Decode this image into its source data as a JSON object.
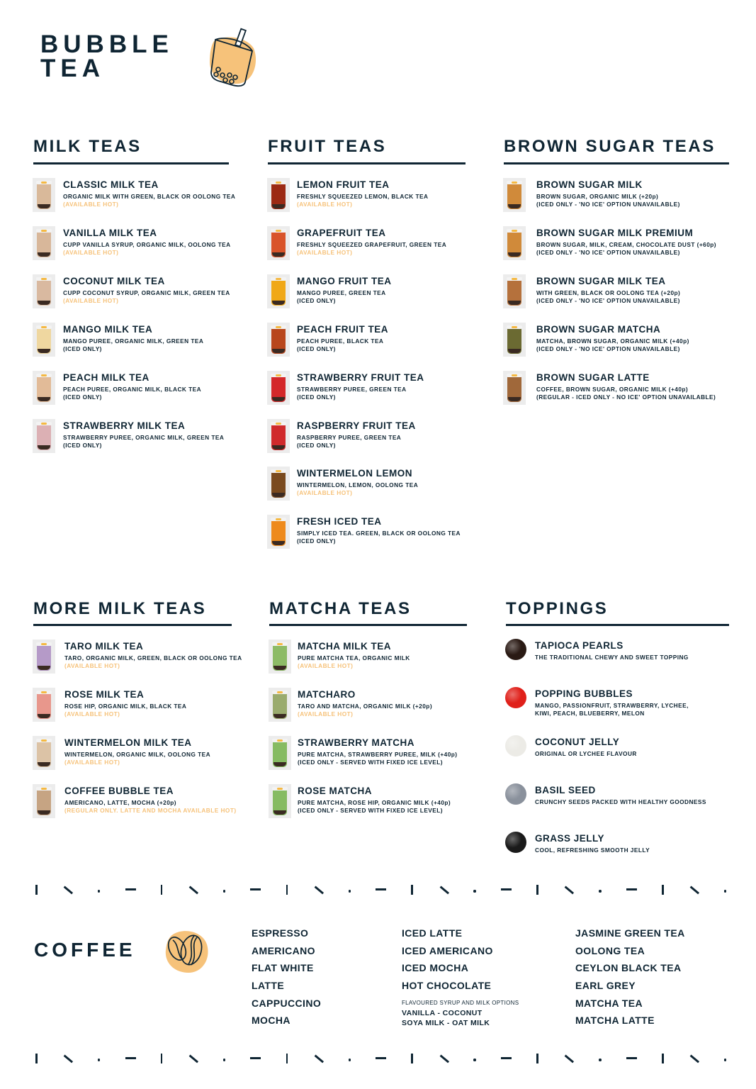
{
  "brand": {
    "line1": "BUBBLE",
    "line2": "TEA",
    "icon": "bubble-tea-cup-icon",
    "accent": "#f6c27a"
  },
  "colors": {
    "text": "#0f2533",
    "note": "#f6c27a"
  },
  "sections": [
    {
      "title": "MILK TEAS",
      "kind": "cup",
      "items": [
        {
          "name": "CLASSIC MILK TEA",
          "lines": [
            "ORGANIC MILK WITH GREEN, BLACK OR OOLONG TEA"
          ],
          "note": "(AVAILABLE HOT)",
          "color": "#d9b99a"
        },
        {
          "name": "VANILLA MILK TEA",
          "lines": [
            "CUPP VANILLA SYRUP, ORGANIC MILK, OOLONG TEA"
          ],
          "note": "(AVAILABLE HOT)",
          "color": "#d8b79a"
        },
        {
          "name": "COCONUT MILK TEA",
          "lines": [
            "CUPP COCONUT SYRUP, ORGANIC MILK, GREEN TEA"
          ],
          "note": "(AVAILABLE HOT)",
          "color": "#d9b9a0"
        },
        {
          "name": "MANGO MILK TEA",
          "lines": [
            "MANGO PUREE, ORGANIC MILK, GREEN TEA",
            "(ICED ONLY)"
          ],
          "color": "#efd7a0"
        },
        {
          "name": "PEACH MILK TEA",
          "lines": [
            "PEACH PUREE, ORGANIC MILK, BLACK TEA",
            "(ICED ONLY)"
          ],
          "color": "#e2bb98"
        },
        {
          "name": "STRAWBERRY MILK TEA",
          "lines": [
            "STRAWBERRY PUREE, ORGANIC MILK, GREEN TEA",
            "(ICED ONLY)"
          ],
          "color": "#dcb0b4"
        }
      ]
    },
    {
      "title": "FRUIT TEAS",
      "kind": "cup",
      "items": [
        {
          "name": "LEMON FRUIT TEA",
          "lines": [
            "FRESHLY SQUEEZED LEMON, BLACK TEA"
          ],
          "note": "(AVAILABLE HOT)",
          "color": "#9c2a14"
        },
        {
          "name": "GRAPEFRUIT TEA",
          "lines": [
            "FRESHLY SQUEEZED GRAPEFRUIT, GREEN TEA"
          ],
          "note": "(AVAILABLE HOT)",
          "color": "#d9542a"
        },
        {
          "name": "MANGO FRUIT TEA",
          "lines": [
            "MANGO PUREE, GREEN TEA",
            "(ICED ONLY)"
          ],
          "color": "#f0a818"
        },
        {
          "name": "PEACH FRUIT TEA",
          "lines": [
            "PEACH PUREE, BLACK TEA",
            "(ICED ONLY)"
          ],
          "color": "#b8461c"
        },
        {
          "name": "STRAWBERRY FRUIT TEA",
          "lines": [
            "STRAWBERRY PUREE, GREEN TEA",
            "(ICED ONLY)"
          ],
          "color": "#d4282a"
        },
        {
          "name": "RASPBERRY FRUIT TEA",
          "lines": [
            "RASPBERRY PUREE, GREEN TEA",
            "(ICED ONLY)"
          ],
          "color": "#d02a2c"
        },
        {
          "name": "WINTERMELON LEMON",
          "lines": [
            "WINTERMELON, LEMON, OOLONG TEA"
          ],
          "note": "(AVAILABLE HOT)",
          "color": "#7a4a1e"
        },
        {
          "name": "FRESH ICED TEA",
          "lines": [
            "SIMPLY ICED TEA. GREEN, BLACK OR OOLONG TEA",
            "(ICED ONLY)"
          ],
          "color": "#ee8a1c"
        }
      ]
    },
    {
      "title": "BROWN SUGAR TEAS",
      "kind": "cup",
      "items": [
        {
          "name": "BROWN SUGAR MILK",
          "lines": [
            "BROWN SUGAR, ORGANIC MILK (+20p)",
            "(ICED ONLY - 'NO ICE' OPTION UNAVAILABLE)"
          ],
          "color": "#d08a3a"
        },
        {
          "name": "BROWN SUGAR MILK PREMIUM",
          "lines": [
            "BROWN SUGAR, MILK, CREAM, CHOCOLATE DUST (+60p)",
            "(ICED ONLY - 'NO ICE' OPTION UNAVAILABLE)"
          ],
          "color": "#d08a3a"
        },
        {
          "name": "BROWN SUGAR MILK TEA",
          "lines": [
            "WITH GREEN, BLACK OR OOLONG TEA (+20p)",
            "(ICED ONLY - 'NO ICE' OPTION UNAVAILABLE)"
          ],
          "color": "#b5713c"
        },
        {
          "name": "BROWN SUGAR MATCHA",
          "lines": [
            "MATCHA, BROWN SUGAR, ORGANIC MILK (+40p)",
            "(ICED ONLY - 'NO ICE' OPTION UNAVAILABLE)"
          ],
          "color": "#6b6a32"
        },
        {
          "name": "BROWN SUGAR LATTE",
          "lines": [
            "COFFEE, BROWN SUGAR, ORGANIC MILK (+40p)",
            "(REGULAR - ICED ONLY - NO ICE' OPTION UNAVAILABLE)"
          ],
          "color": "#a0683a"
        }
      ]
    },
    {
      "title": "MORE MILK TEAS",
      "kind": "cup",
      "items": [
        {
          "name": "TARO MILK TEA",
          "lines": [
            "TARO, ORGANIC MILK, GREEN, BLACK OR OOLONG TEA"
          ],
          "note": "(AVAILABLE HOT)",
          "color": "#b59ac8"
        },
        {
          "name": "ROSE MILK TEA",
          "lines": [
            "ROSE HIP, ORGANIC MILK, BLACK TEA"
          ],
          "note": "(AVAILABLE HOT)",
          "color": "#e8978c"
        },
        {
          "name": "WINTERMELON MILK TEA",
          "lines": [
            "WINTERMELON, ORGANIC MILK, OOLONG TEA"
          ],
          "note": "(AVAILABLE HOT)",
          "color": "#dcc3a6"
        },
        {
          "name": "COFFEE BUBBLE TEA",
          "lines": [
            "AMERICANO, LATTE, MOCHA (+20p)"
          ],
          "note": "(REGULAR ONLY. LATTE AND MOCHA AVAILABLE HOT)",
          "color": "#c6a483"
        }
      ]
    },
    {
      "title": "MATCHA TEAS",
      "kind": "cup",
      "items": [
        {
          "name": "MATCHA MILK TEA",
          "lines": [
            "PURE MATCHA TEA, ORGANIC MILK"
          ],
          "note": "(AVAILABLE HOT)",
          "color": "#8dbb66"
        },
        {
          "name": "MATCHARO",
          "lines": [
            "TARO AND MATCHA, ORGANIC MILK (+20p)"
          ],
          "note": "(AVAILABLE HOT)",
          "color": "#9aab6e"
        },
        {
          "name": "STRAWBERRY MATCHA",
          "lines": [
            "PURE MATCHA, STRAWBERRY PUREE, MILK (+40p)",
            "(ICED ONLY - SERVED WITH FIXED ICE LEVEL)"
          ],
          "color": "#86bb62"
        },
        {
          "name": "ROSE MATCHA",
          "lines": [
            "PURE MATCHA, ROSE HIP, ORGANIC MILK (+40p)",
            "(ICED ONLY - SERVED WITH FIXED ICE LEVEL)"
          ],
          "color": "#86bb62"
        }
      ]
    },
    {
      "title": "TOPPINGS",
      "kind": "round",
      "items": [
        {
          "name": "TAPIOCA PEARLS",
          "lines": [
            "THE TRADITIONAL CHEWY AND SWEET TOPPING"
          ],
          "color": "#2a1a14"
        },
        {
          "name": "POPPING BUBBLES",
          "lines": [
            "MANGO, PASSIONFRUIT, STRAWBERRY, LYCHEE,",
            "KIWI, PEACH, BLUEBERRY, MELON"
          ],
          "color": "#e0201a"
        },
        {
          "name": "COCONUT JELLY",
          "lines": [
            "ORIGINAL OR LYCHEE FLAVOUR"
          ],
          "color": "#ecebe6"
        },
        {
          "name": "BASIL SEED",
          "lines": [
            "CRUNCHY SEEDS PACKED WITH HEALTHY GOODNESS"
          ],
          "color": "#8a919c"
        },
        {
          "name": "GRASS JELLY",
          "lines": [
            "COOL, REFRESHING SMOOTH JELLY"
          ],
          "color": "#1a1a1a"
        }
      ]
    }
  ],
  "coffee": {
    "title": "COFFEE",
    "icon": "coffee-bean-icon",
    "col1": [
      "ESPRESSO",
      "AMERICANO",
      "FLAT WHITE",
      "LATTE",
      "CAPPUCCINO",
      "MOCHA"
    ],
    "col2": [
      "ICED LATTE",
      "ICED AMERICANO",
      "ICED MOCHA",
      "HOT CHOCOLATE"
    ],
    "options_label": "FLAVOURED SYRUP AND MILK OPTIONS",
    "options": [
      "VANILLA - COCONUT",
      "SOYA MILK - OAT MILK"
    ],
    "col3": [
      "JASMINE GREEN TEA",
      "OOLONG TEA",
      "CEYLON BLACK TEA",
      "EARL GREY",
      "MATCHA TEA",
      "MATCHA LATTE"
    ]
  }
}
